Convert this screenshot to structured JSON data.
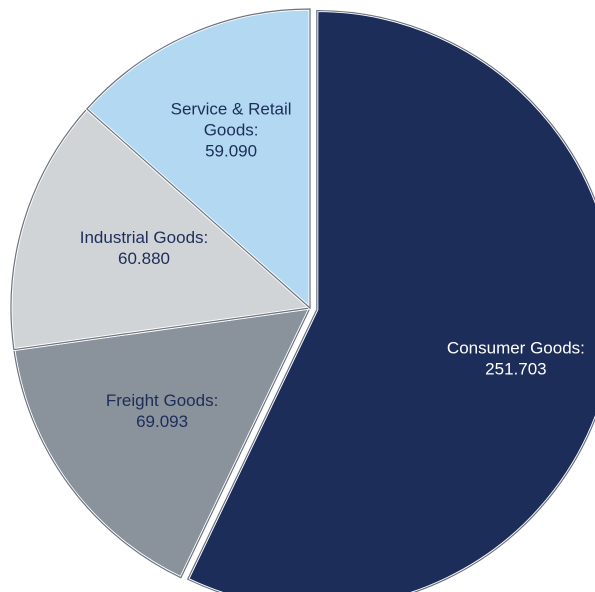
{
  "chart_data": {
    "type": "pie",
    "title": "",
    "unit_separator": ":",
    "slices": [
      {
        "name": "Consumer Goods",
        "value": 251.703,
        "label_lines": [
          "Consumer Goods:",
          "251.703"
        ],
        "color": "#1d2d5a",
        "label_color": "#ffffff"
      },
      {
        "name": "Freight Goods",
        "value": 69.093,
        "label_lines": [
          "Freight Goods:",
          "69.093"
        ],
        "color": "#8a929b",
        "label_color": "#1d2d5a"
      },
      {
        "name": "Industrial Goods",
        "value": 60.88,
        "label_lines": [
          "Industrial Goods:",
          "60.880"
        ],
        "color": "#d1d4d7",
        "label_color": "#1d2d5a"
      },
      {
        "name": "Service & Retail Goods",
        "value": 59.09,
        "label_lines": [
          "Service & Retail",
          "Goods:",
          "59.090"
        ],
        "color": "#b3d9f2",
        "label_color": "#1d2d5a"
      }
    ],
    "start_angle_deg": 0,
    "direction": "clockwise",
    "exploded_slice": "Consumer Goods",
    "legend": "none"
  }
}
